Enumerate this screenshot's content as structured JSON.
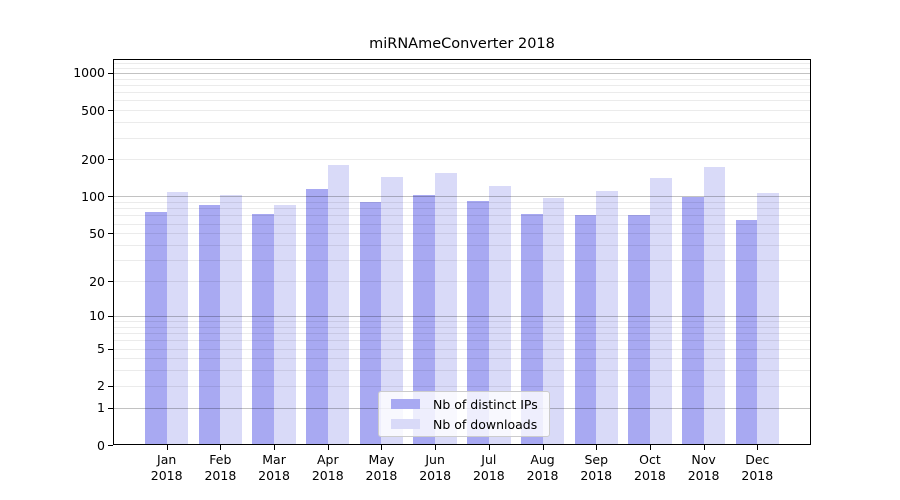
{
  "title": "miRNAmeConverter 2018",
  "chart_data": {
    "type": "bar",
    "title": "miRNAmeConverter 2018",
    "categories": [
      "Jan",
      "Feb",
      "Mar",
      "Apr",
      "May",
      "Jun",
      "Jul",
      "Aug",
      "Sep",
      "Oct",
      "Nov",
      "Dec"
    ],
    "x_tick_second_line": "2018",
    "series": [
      {
        "name": "Nb of distinct IPs",
        "color": "#a8a9f2",
        "values": [
          74,
          83,
          71,
          113,
          88,
          100,
          90,
          71,
          69,
          69,
          98,
          63
        ]
      },
      {
        "name": "Nb of downloads",
        "color": "#d9daf8",
        "values": [
          106,
          100,
          84,
          178,
          142,
          152,
          120,
          95,
          109,
          140,
          170,
          105
        ]
      }
    ],
    "xlabel": "",
    "ylabel": "",
    "y_scale": "log1p",
    "ylim": [
      0,
      1296
    ],
    "y_ticks": [
      0,
      1,
      2,
      5,
      10,
      20,
      50,
      100,
      200,
      500,
      1000
    ],
    "y_major_gridlines": [
      1,
      10,
      100,
      1000
    ],
    "y_minor_gridlines": [
      3,
      4,
      6,
      7,
      8,
      9,
      30,
      40,
      60,
      70,
      80,
      90,
      300,
      400,
      600,
      700,
      800,
      900,
      1100,
      1200
    ],
    "grid": true,
    "legend_position": "lower center"
  },
  "legend": {
    "items": [
      {
        "label": "Nb of distinct IPs"
      },
      {
        "label": "Nb of downloads"
      }
    ]
  }
}
